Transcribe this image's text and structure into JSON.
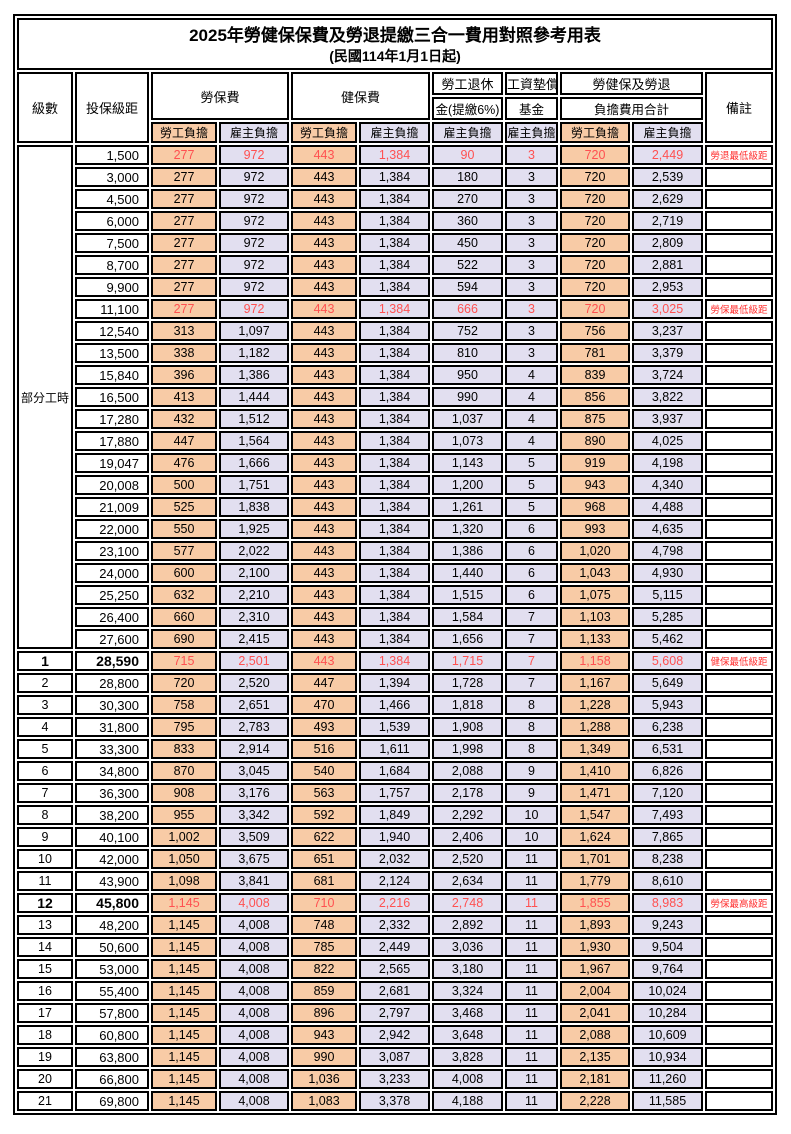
{
  "title": "2025年勞健保保費及勞退提繳三合一費用對照參考用表",
  "subtitle": "(民國114年1月1日起)",
  "header": {
    "level": "級數",
    "bracket": "投保級距",
    "labor_insurance": "勞保費",
    "health_insurance": "健保費",
    "pension_line1": "勞工退休",
    "pension_line2": "金(提繳6%)",
    "wage_fund_line1": "工資墊償",
    "wage_fund_line2": "基金",
    "total_line1": "勞健保及勞退",
    "total_line2": "負擔費用合計",
    "remark": "備註",
    "employee": "勞工負擔",
    "employer": "雇主負擔"
  },
  "part_time": {
    "label": "部分工時",
    "span": 23
  },
  "colors": {
    "employee_bg": "#F8CBA6",
    "employer_bg": "#E2DFF0",
    "highlight_text": "#FF5151",
    "remark_text": "#FF2D2D",
    "border": "#000000"
  },
  "rows": [
    {
      "level": "",
      "bracket": "1,500",
      "values": [
        "277",
        "972",
        "443",
        "1,384",
        "90",
        "3",
        "720",
        "2,449"
      ],
      "remark": "勞退最低級距",
      "highlight": true,
      "bold": false
    },
    {
      "level": "",
      "bracket": "3,000",
      "values": [
        "277",
        "972",
        "443",
        "1,384",
        "180",
        "3",
        "720",
        "2,539"
      ],
      "remark": "",
      "highlight": false,
      "bold": false
    },
    {
      "level": "",
      "bracket": "4,500",
      "values": [
        "277",
        "972",
        "443",
        "1,384",
        "270",
        "3",
        "720",
        "2,629"
      ],
      "remark": "",
      "highlight": false,
      "bold": false
    },
    {
      "level": "",
      "bracket": "6,000",
      "values": [
        "277",
        "972",
        "443",
        "1,384",
        "360",
        "3",
        "720",
        "2,719"
      ],
      "remark": "",
      "highlight": false,
      "bold": false
    },
    {
      "level": "",
      "bracket": "7,500",
      "values": [
        "277",
        "972",
        "443",
        "1,384",
        "450",
        "3",
        "720",
        "2,809"
      ],
      "remark": "",
      "highlight": false,
      "bold": false
    },
    {
      "level": "",
      "bracket": "8,700",
      "values": [
        "277",
        "972",
        "443",
        "1,384",
        "522",
        "3",
        "720",
        "2,881"
      ],
      "remark": "",
      "highlight": false,
      "bold": false
    },
    {
      "level": "",
      "bracket": "9,900",
      "values": [
        "277",
        "972",
        "443",
        "1,384",
        "594",
        "3",
        "720",
        "2,953"
      ],
      "remark": "",
      "highlight": false,
      "bold": false
    },
    {
      "level": "",
      "bracket": "11,100",
      "values": [
        "277",
        "972",
        "443",
        "1,384",
        "666",
        "3",
        "720",
        "3,025"
      ],
      "remark": "勞保最低級距",
      "highlight": true,
      "bold": false
    },
    {
      "level": "",
      "bracket": "12,540",
      "values": [
        "313",
        "1,097",
        "443",
        "1,384",
        "752",
        "3",
        "756",
        "3,237"
      ],
      "remark": "",
      "highlight": false,
      "bold": false
    },
    {
      "level": "",
      "bracket": "13,500",
      "values": [
        "338",
        "1,182",
        "443",
        "1,384",
        "810",
        "3",
        "781",
        "3,379"
      ],
      "remark": "",
      "highlight": false,
      "bold": false
    },
    {
      "level": "",
      "bracket": "15,840",
      "values": [
        "396",
        "1,386",
        "443",
        "1,384",
        "950",
        "4",
        "839",
        "3,724"
      ],
      "remark": "",
      "highlight": false,
      "bold": false
    },
    {
      "level": "",
      "bracket": "16,500",
      "values": [
        "413",
        "1,444",
        "443",
        "1,384",
        "990",
        "4",
        "856",
        "3,822"
      ],
      "remark": "",
      "highlight": false,
      "bold": false
    },
    {
      "level": "",
      "bracket": "17,280",
      "values": [
        "432",
        "1,512",
        "443",
        "1,384",
        "1,037",
        "4",
        "875",
        "3,937"
      ],
      "remark": "",
      "highlight": false,
      "bold": false
    },
    {
      "level": "",
      "bracket": "17,880",
      "values": [
        "447",
        "1,564",
        "443",
        "1,384",
        "1,073",
        "4",
        "890",
        "4,025"
      ],
      "remark": "",
      "highlight": false,
      "bold": false
    },
    {
      "level": "",
      "bracket": "19,047",
      "values": [
        "476",
        "1,666",
        "443",
        "1,384",
        "1,143",
        "5",
        "919",
        "4,198"
      ],
      "remark": "",
      "highlight": false,
      "bold": false
    },
    {
      "level": "",
      "bracket": "20,008",
      "values": [
        "500",
        "1,751",
        "443",
        "1,384",
        "1,200",
        "5",
        "943",
        "4,340"
      ],
      "remark": "",
      "highlight": false,
      "bold": false
    },
    {
      "level": "",
      "bracket": "21,009",
      "values": [
        "525",
        "1,838",
        "443",
        "1,384",
        "1,261",
        "5",
        "968",
        "4,488"
      ],
      "remark": "",
      "highlight": false,
      "bold": false
    },
    {
      "level": "",
      "bracket": "22,000",
      "values": [
        "550",
        "1,925",
        "443",
        "1,384",
        "1,320",
        "6",
        "993",
        "4,635"
      ],
      "remark": "",
      "highlight": false,
      "bold": false
    },
    {
      "level": "",
      "bracket": "23,100",
      "values": [
        "577",
        "2,022",
        "443",
        "1,384",
        "1,386",
        "6",
        "1,020",
        "4,798"
      ],
      "remark": "",
      "highlight": false,
      "bold": false
    },
    {
      "level": "",
      "bracket": "24,000",
      "values": [
        "600",
        "2,100",
        "443",
        "1,384",
        "1,440",
        "6",
        "1,043",
        "4,930"
      ],
      "remark": "",
      "highlight": false,
      "bold": false
    },
    {
      "level": "",
      "bracket": "25,250",
      "values": [
        "632",
        "2,210",
        "443",
        "1,384",
        "1,515",
        "6",
        "1,075",
        "5,115"
      ],
      "remark": "",
      "highlight": false,
      "bold": false
    },
    {
      "level": "",
      "bracket": "26,400",
      "values": [
        "660",
        "2,310",
        "443",
        "1,384",
        "1,584",
        "7",
        "1,103",
        "5,285"
      ],
      "remark": "",
      "highlight": false,
      "bold": false
    },
    {
      "level": "",
      "bracket": "27,600",
      "values": [
        "690",
        "2,415",
        "443",
        "1,384",
        "1,656",
        "7",
        "1,133",
        "5,462"
      ],
      "remark": "",
      "highlight": false,
      "bold": false
    },
    {
      "level": "1",
      "bracket": "28,590",
      "values": [
        "715",
        "2,501",
        "443",
        "1,384",
        "1,715",
        "7",
        "1,158",
        "5,608"
      ],
      "remark": "健保最低級距",
      "highlight": true,
      "bold": true
    },
    {
      "level": "2",
      "bracket": "28,800",
      "values": [
        "720",
        "2,520",
        "447",
        "1,394",
        "1,728",
        "7",
        "1,167",
        "5,649"
      ],
      "remark": "",
      "highlight": false,
      "bold": false
    },
    {
      "level": "3",
      "bracket": "30,300",
      "values": [
        "758",
        "2,651",
        "470",
        "1,466",
        "1,818",
        "8",
        "1,228",
        "5,943"
      ],
      "remark": "",
      "highlight": false,
      "bold": false
    },
    {
      "level": "4",
      "bracket": "31,800",
      "values": [
        "795",
        "2,783",
        "493",
        "1,539",
        "1,908",
        "8",
        "1,288",
        "6,238"
      ],
      "remark": "",
      "highlight": false,
      "bold": false
    },
    {
      "level": "5",
      "bracket": "33,300",
      "values": [
        "833",
        "2,914",
        "516",
        "1,611",
        "1,998",
        "8",
        "1,349",
        "6,531"
      ],
      "remark": "",
      "highlight": false,
      "bold": false
    },
    {
      "level": "6",
      "bracket": "34,800",
      "values": [
        "870",
        "3,045",
        "540",
        "1,684",
        "2,088",
        "9",
        "1,410",
        "6,826"
      ],
      "remark": "",
      "highlight": false,
      "bold": false
    },
    {
      "level": "7",
      "bracket": "36,300",
      "values": [
        "908",
        "3,176",
        "563",
        "1,757",
        "2,178",
        "9",
        "1,471",
        "7,120"
      ],
      "remark": "",
      "highlight": false,
      "bold": false
    },
    {
      "level": "8",
      "bracket": "38,200",
      "values": [
        "955",
        "3,342",
        "592",
        "1,849",
        "2,292",
        "10",
        "1,547",
        "7,493"
      ],
      "remark": "",
      "highlight": false,
      "bold": false
    },
    {
      "level": "9",
      "bracket": "40,100",
      "values": [
        "1,002",
        "3,509",
        "622",
        "1,940",
        "2,406",
        "10",
        "1,624",
        "7,865"
      ],
      "remark": "",
      "highlight": false,
      "bold": false
    },
    {
      "level": "10",
      "bracket": "42,000",
      "values": [
        "1,050",
        "3,675",
        "651",
        "2,032",
        "2,520",
        "11",
        "1,701",
        "8,238"
      ],
      "remark": "",
      "highlight": false,
      "bold": false
    },
    {
      "level": "11",
      "bracket": "43,900",
      "values": [
        "1,098",
        "3,841",
        "681",
        "2,124",
        "2,634",
        "11",
        "1,779",
        "8,610"
      ],
      "remark": "",
      "highlight": false,
      "bold": false
    },
    {
      "level": "12",
      "bracket": "45,800",
      "values": [
        "1,145",
        "4,008",
        "710",
        "2,216",
        "2,748",
        "11",
        "1,855",
        "8,983"
      ],
      "remark": "勞保最高級距",
      "highlight": true,
      "bold": true
    },
    {
      "level": "13",
      "bracket": "48,200",
      "values": [
        "1,145",
        "4,008",
        "748",
        "2,332",
        "2,892",
        "11",
        "1,893",
        "9,243"
      ],
      "remark": "",
      "highlight": false,
      "bold": false
    },
    {
      "level": "14",
      "bracket": "50,600",
      "values": [
        "1,145",
        "4,008",
        "785",
        "2,449",
        "3,036",
        "11",
        "1,930",
        "9,504"
      ],
      "remark": "",
      "highlight": false,
      "bold": false
    },
    {
      "level": "15",
      "bracket": "53,000",
      "values": [
        "1,145",
        "4,008",
        "822",
        "2,565",
        "3,180",
        "11",
        "1,967",
        "9,764"
      ],
      "remark": "",
      "highlight": false,
      "bold": false
    },
    {
      "level": "16",
      "bracket": "55,400",
      "values": [
        "1,145",
        "4,008",
        "859",
        "2,681",
        "3,324",
        "11",
        "2,004",
        "10,024"
      ],
      "remark": "",
      "highlight": false,
      "bold": false
    },
    {
      "level": "17",
      "bracket": "57,800",
      "values": [
        "1,145",
        "4,008",
        "896",
        "2,797",
        "3,468",
        "11",
        "2,041",
        "10,284"
      ],
      "remark": "",
      "highlight": false,
      "bold": false
    },
    {
      "level": "18",
      "bracket": "60,800",
      "values": [
        "1,145",
        "4,008",
        "943",
        "2,942",
        "3,648",
        "11",
        "2,088",
        "10,609"
      ],
      "remark": "",
      "highlight": false,
      "bold": false
    },
    {
      "level": "19",
      "bracket": "63,800",
      "values": [
        "1,145",
        "4,008",
        "990",
        "3,087",
        "3,828",
        "11",
        "2,135",
        "10,934"
      ],
      "remark": "",
      "highlight": false,
      "bold": false
    },
    {
      "level": "20",
      "bracket": "66,800",
      "values": [
        "1,145",
        "4,008",
        "1,036",
        "3,233",
        "4,008",
        "11",
        "2,181",
        "11,260"
      ],
      "remark": "",
      "highlight": false,
      "bold": false
    },
    {
      "level": "21",
      "bracket": "69,800",
      "values": [
        "1,145",
        "4,008",
        "1,083",
        "3,378",
        "4,188",
        "11",
        "2,228",
        "11,585"
      ],
      "remark": "",
      "highlight": false,
      "bold": false
    }
  ]
}
